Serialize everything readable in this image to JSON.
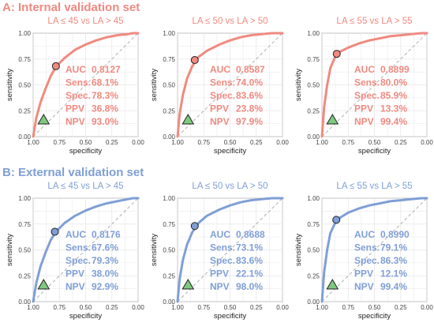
{
  "colors": {
    "internal": "#f08a80",
    "external": "#7f9fd6",
    "triangle": "#7fc97f",
    "diag": "#b0b0b0",
    "grid": "#e6e6e6"
  },
  "common": {
    "xlabel": "specificity",
    "ylabel": "sensitivity",
    "xticks": [
      "1.00",
      "0.75",
      "0.50",
      "0.25",
      "0.00"
    ],
    "yticks": [
      "1.00",
      "0.75",
      "0.50",
      "0.25",
      "0.00"
    ],
    "metric_labels": [
      "AUC",
      "Sens.",
      "Spec.",
      "PPV",
      "NPV"
    ]
  },
  "sections": [
    {
      "title": "A: Internal validation set",
      "color_key": "internal",
      "panels": [
        {
          "title": "LA ≤ 45 vs LA > 45",
          "metrics": [
            "0.8127",
            "68.1%",
            "78.3%",
            "36.8%",
            "93.0%"
          ],
          "point": {
            "spec": 0.783,
            "sens": 0.681
          },
          "triangle": {
            "spec": 0.9,
            "sens": 0.16
          }
        },
        {
          "title": "LA ≤ 50 vs LA > 50",
          "metrics": [
            "0.8587",
            "74.0%",
            "83.6%",
            "23.8%",
            "97.9%"
          ],
          "point": {
            "spec": 0.836,
            "sens": 0.74
          },
          "triangle": {
            "spec": 0.9,
            "sens": 0.16
          }
        },
        {
          "title": "LA ≤ 55 vs LA > 55",
          "metrics": [
            "0.8899",
            "80.0%",
            "85.9%",
            "13.3%",
            "99.4%"
          ],
          "point": {
            "spec": 0.859,
            "sens": 0.8
          },
          "triangle": {
            "spec": 0.9,
            "sens": 0.16
          }
        }
      ]
    },
    {
      "title": "B: External validation set",
      "color_key": "external",
      "panels": [
        {
          "title": "LA ≤ 45 vs LA > 45",
          "metrics": [
            "0.8176",
            "67.6%",
            "79.3%",
            "38.0%",
            "92.9%"
          ],
          "point": {
            "spec": 0.793,
            "sens": 0.676
          },
          "triangle": {
            "spec": 0.9,
            "sens": 0.16
          }
        },
        {
          "title": "LA ≤ 50 vs LA > 50",
          "metrics": [
            "0.8688",
            "73.1%",
            "83.6%",
            "22.1%",
            "98.0%"
          ],
          "point": {
            "spec": 0.836,
            "sens": 0.731
          },
          "triangle": {
            "spec": 0.9,
            "sens": 0.16
          }
        },
        {
          "title": "LA ≤ 55 vs LA > 55",
          "metrics": [
            "0.8990",
            "79.1%",
            "86.3%",
            "12.1%",
            "99.4%"
          ],
          "point": {
            "spec": 0.863,
            "sens": 0.791
          },
          "triangle": {
            "spec": 0.9,
            "sens": 0.16
          }
        }
      ]
    }
  ],
  "chart_data": [
    {
      "type": "line",
      "title": "LA ≤ 45 vs LA > 45",
      "xlabel": "specificity",
      "ylabel": "sensitivity",
      "xlim": [
        1,
        0
      ],
      "ylim": [
        0,
        1
      ],
      "grid": true,
      "x": [
        1.0,
        0.97,
        0.93,
        0.88,
        0.83,
        0.78,
        0.7,
        0.6,
        0.5,
        0.4,
        0.3,
        0.2,
        0.1,
        0.05,
        0.0
      ],
      "series": [
        {
          "values": [
            0.0,
            0.18,
            0.33,
            0.47,
            0.59,
            0.68,
            0.76,
            0.84,
            0.89,
            0.93,
            0.96,
            0.98,
            0.99,
            1.0,
            1.0
          ]
        }
      ]
    },
    {
      "type": "line",
      "title": "LA ≤ 50 vs LA > 50",
      "xlabel": "specificity",
      "ylabel": "sensitivity",
      "xlim": [
        1,
        0
      ],
      "ylim": [
        0,
        1
      ],
      "grid": true,
      "x": [
        1.0,
        0.98,
        0.95,
        0.91,
        0.86,
        0.8,
        0.72,
        0.6,
        0.5,
        0.4,
        0.3,
        0.2,
        0.1,
        0.0
      ],
      "series": [
        {
          "values": [
            0.0,
            0.22,
            0.4,
            0.56,
            0.68,
            0.77,
            0.83,
            0.89,
            0.93,
            0.96,
            0.98,
            0.99,
            1.0,
            1.0
          ]
        }
      ]
    },
    {
      "type": "line",
      "title": "LA ≤ 55 vs LA > 55",
      "xlabel": "specificity",
      "ylabel": "sensitivity",
      "xlim": [
        1,
        0
      ],
      "ylim": [
        0,
        1
      ],
      "grid": true,
      "x": [
        1.0,
        0.98,
        0.95,
        0.92,
        0.88,
        0.83,
        0.75,
        0.65,
        0.55,
        0.45,
        0.35,
        0.25,
        0.15,
        0.05,
        0.0
      ],
      "series": [
        {
          "values": [
            0.0,
            0.28,
            0.5,
            0.66,
            0.76,
            0.82,
            0.86,
            0.9,
            0.93,
            0.95,
            0.97,
            0.98,
            0.99,
            1.0,
            1.0
          ]
        }
      ]
    },
    {
      "type": "line",
      "title": "LA ≤ 45 vs LA > 45",
      "xlabel": "specificity",
      "ylabel": "sensitivity",
      "xlim": [
        1,
        0
      ],
      "ylim": [
        0,
        1
      ],
      "grid": true,
      "x": [
        1.0,
        0.97,
        0.93,
        0.88,
        0.83,
        0.78,
        0.7,
        0.6,
        0.5,
        0.4,
        0.3,
        0.2,
        0.1,
        0.05,
        0.0
      ],
      "series": [
        {
          "values": [
            0.0,
            0.18,
            0.34,
            0.48,
            0.6,
            0.68,
            0.76,
            0.83,
            0.88,
            0.92,
            0.95,
            0.97,
            0.99,
            1.0,
            1.0
          ]
        }
      ]
    },
    {
      "type": "line",
      "title": "LA ≤ 50 vs LA > 50",
      "xlabel": "specificity",
      "ylabel": "sensitivity",
      "xlim": [
        1,
        0
      ],
      "ylim": [
        0,
        1
      ],
      "grid": true,
      "x": [
        1.0,
        0.98,
        0.95,
        0.91,
        0.86,
        0.8,
        0.72,
        0.6,
        0.5,
        0.4,
        0.3,
        0.2,
        0.1,
        0.0
      ],
      "series": [
        {
          "values": [
            0.0,
            0.22,
            0.4,
            0.55,
            0.67,
            0.76,
            0.83,
            0.89,
            0.93,
            0.96,
            0.98,
            0.99,
            1.0,
            1.0
          ]
        }
      ]
    },
    {
      "type": "line",
      "title": "LA ≤ 55 vs LA > 55",
      "xlabel": "specificity",
      "ylabel": "sensitivity",
      "xlim": [
        1,
        0
      ],
      "ylim": [
        0,
        1
      ],
      "grid": true,
      "x": [
        1.0,
        0.98,
        0.95,
        0.92,
        0.88,
        0.83,
        0.75,
        0.65,
        0.55,
        0.45,
        0.35,
        0.25,
        0.15,
        0.05,
        0.0
      ],
      "series": [
        {
          "values": [
            0.0,
            0.28,
            0.5,
            0.66,
            0.75,
            0.81,
            0.86,
            0.9,
            0.93,
            0.95,
            0.97,
            0.98,
            0.99,
            1.0,
            1.0
          ]
        }
      ]
    }
  ]
}
